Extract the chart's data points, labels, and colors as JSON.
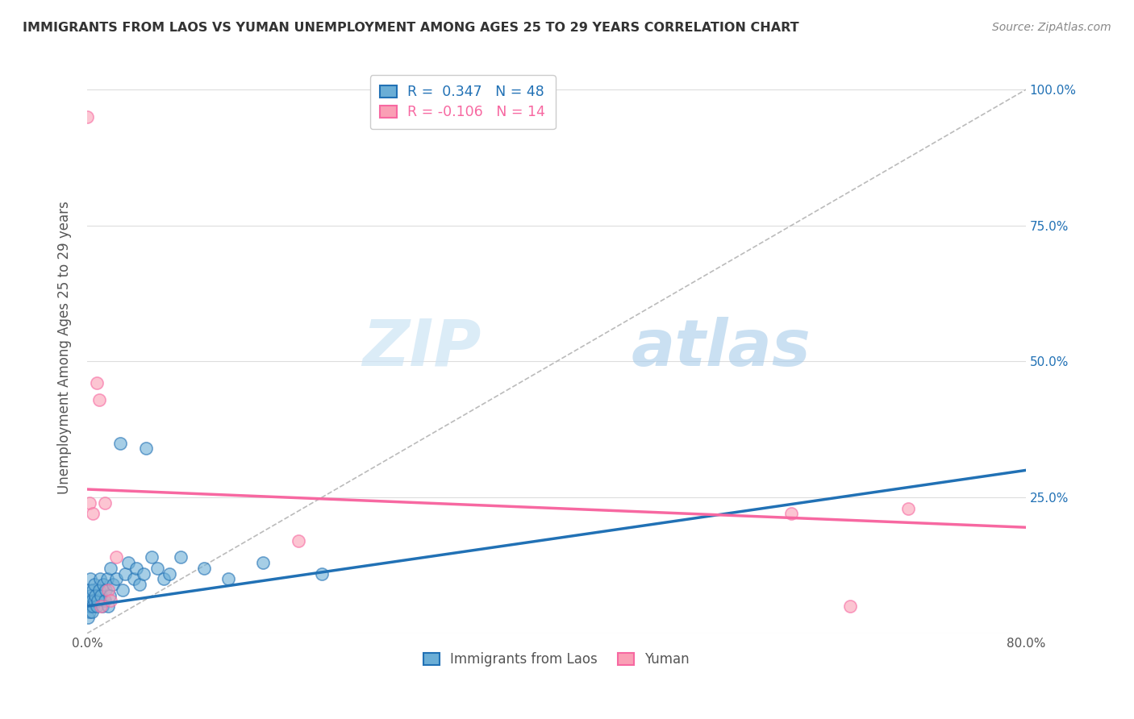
{
  "title": "IMMIGRANTS FROM LAOS VS YUMAN UNEMPLOYMENT AMONG AGES 25 TO 29 YEARS CORRELATION CHART",
  "source": "Source: ZipAtlas.com",
  "xlabel": "",
  "ylabel": "Unemployment Among Ages 25 to 29 years",
  "xlim": [
    0.0,
    0.8
  ],
  "ylim": [
    0.0,
    1.05
  ],
  "xticks": [
    0.0,
    0.1,
    0.2,
    0.3,
    0.4,
    0.5,
    0.6,
    0.7,
    0.8
  ],
  "xticklabels": [
    "0.0%",
    "",
    "",
    "",
    "",
    "",
    "",
    "",
    "80.0%"
  ],
  "ytick_positions": [
    0.0,
    0.25,
    0.5,
    0.75,
    1.0
  ],
  "ytick_labels_right": [
    "",
    "25.0%",
    "50.0%",
    "75.0%",
    "100.0%"
  ],
  "legend_r1": "R =  0.347   N = 48",
  "legend_r2": "R = -0.106   N = 14",
  "blue_color": "#6baed6",
  "pink_color": "#fa9fb5",
  "blue_line_color": "#2171b5",
  "pink_line_color": "#f768a1",
  "diag_line_color": "#bbbbbb",
  "watermark_zip": "ZIP",
  "watermark_atlas": "atlas",
  "blue_points_x": [
    0.0,
    0.001,
    0.002,
    0.002,
    0.002,
    0.003,
    0.003,
    0.003,
    0.004,
    0.004,
    0.005,
    0.005,
    0.006,
    0.006,
    0.007,
    0.008,
    0.009,
    0.01,
    0.011,
    0.012,
    0.013,
    0.014,
    0.015,
    0.016,
    0.017,
    0.018,
    0.019,
    0.02,
    0.022,
    0.025,
    0.028,
    0.03,
    0.032,
    0.035,
    0.04,
    0.042,
    0.045,
    0.048,
    0.05,
    0.055,
    0.06,
    0.065,
    0.07,
    0.08,
    0.1,
    0.12,
    0.15,
    0.2
  ],
  "blue_points_y": [
    0.05,
    0.03,
    0.04,
    0.06,
    0.08,
    0.05,
    0.07,
    0.1,
    0.04,
    0.06,
    0.05,
    0.08,
    0.06,
    0.09,
    0.07,
    0.05,
    0.06,
    0.08,
    0.1,
    0.07,
    0.05,
    0.09,
    0.06,
    0.08,
    0.1,
    0.05,
    0.07,
    0.12,
    0.09,
    0.1,
    0.35,
    0.08,
    0.11,
    0.13,
    0.1,
    0.12,
    0.09,
    0.11,
    0.34,
    0.14,
    0.12,
    0.1,
    0.11,
    0.14,
    0.12,
    0.1,
    0.13,
    0.11
  ],
  "pink_points_x": [
    0.0,
    0.002,
    0.005,
    0.008,
    0.01,
    0.012,
    0.015,
    0.018,
    0.02,
    0.025,
    0.18,
    0.6,
    0.65,
    0.7
  ],
  "pink_points_y": [
    0.95,
    0.24,
    0.22,
    0.46,
    0.43,
    0.05,
    0.24,
    0.08,
    0.06,
    0.14,
    0.17,
    0.22,
    0.05,
    0.23
  ],
  "blue_trendline_x": [
    0.0,
    0.8
  ],
  "blue_trendline_y": [
    0.05,
    0.3
  ],
  "pink_trendline_x": [
    0.0,
    0.8
  ],
  "pink_trendline_y": [
    0.265,
    0.195
  ],
  "diag_line_x": [
    0.0,
    0.8
  ],
  "diag_line_y": [
    0.0,
    1.0
  ],
  "background_color": "#ffffff",
  "grid_color": "#dddddd"
}
